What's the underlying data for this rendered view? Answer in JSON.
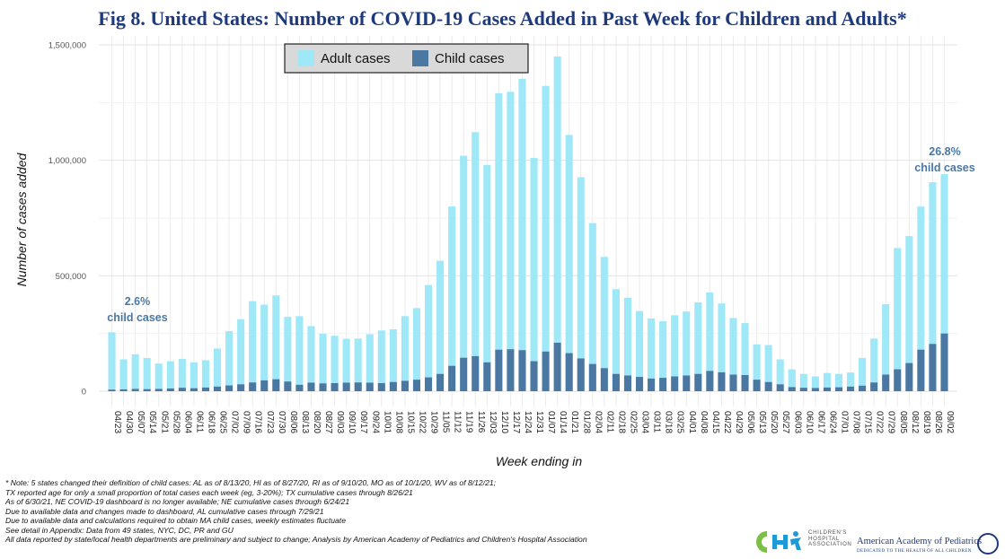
{
  "chart_data": {
    "type": "bar",
    "stacked": true,
    "title": "Fig 8. United States: Number of COVID-19 Cases Added in Past Week for Children and Adults*",
    "xlabel": "Week ending in",
    "ylabel": "Number of cases added",
    "ylim": [
      0,
      1500000
    ],
    "yticks": [
      "0",
      "500,000",
      "1,000,000",
      "1,500,000"
    ],
    "ytick_values": [
      0,
      500000,
      1000000,
      1500000
    ],
    "grid": true,
    "legend_position": "top-center",
    "categories": [
      "04/23",
      "04/30",
      "05/07",
      "05/14",
      "05/21",
      "05/28",
      "06/04",
      "06/11",
      "06/18",
      "06/25",
      "07/02",
      "07/09",
      "07/16",
      "07/23",
      "07/30",
      "08/06",
      "08/13",
      "08/20",
      "08/27",
      "09/03",
      "09/10",
      "09/17",
      "09/24",
      "10/01",
      "10/08",
      "10/15",
      "10/22",
      "10/29",
      "11/05",
      "11/12",
      "11/19",
      "11/26",
      "12/03",
      "12/10",
      "12/17",
      "12/24",
      "12/31",
      "01/07",
      "01/14",
      "01/21",
      "01/28",
      "02/04",
      "02/11",
      "02/18",
      "02/25",
      "03/04",
      "03/11",
      "03/18",
      "03/25",
      "04/01",
      "04/08",
      "04/15",
      "04/22",
      "04/29",
      "05/06",
      "05/13",
      "05/20",
      "05/27",
      "06/03",
      "06/10",
      "06/17",
      "06/24",
      "07/01",
      "07/08",
      "07/15",
      "07/22",
      "07/29",
      "08/05",
      "08/12",
      "08/19",
      "08/26",
      "09/02"
    ],
    "x_tick_labels": [
      "04/23",
      "05/07",
      "05/21",
      "06/04",
      "06/18",
      "07/02",
      "07/16",
      "07/30",
      "08/13",
      "08/27",
      "09/10",
      "09/24",
      "10/08",
      "10/22",
      "11/05",
      "11/19",
      "12/03",
      "12/17",
      "12/31",
      "01/14",
      "01/28",
      "02/11",
      "02/25",
      "03/11",
      "03/25",
      "04/08",
      "04/22",
      "05/06",
      "05/20",
      "06/03",
      "06/17",
      "07/01",
      "07/15",
      "07/29",
      "08/12",
      "08/26"
    ],
    "x_tick_labels_row2": [
      "04/30",
      "05/14",
      "05/28",
      "06/11",
      "06/25",
      "07/09",
      "07/23",
      "08/06",
      "08/20",
      "09/03",
      "09/17",
      "10/01",
      "10/15",
      "10/29",
      "11/12",
      "11/26",
      "12/10",
      "12/24",
      "01/07",
      "01/21",
      "02/04",
      "02/18",
      "03/04",
      "03/18",
      "04/01",
      "04/15",
      "04/29",
      "05/13",
      "05/27",
      "06/10",
      "06/24",
      "07/08",
      "07/22",
      "08/05",
      "08/19",
      "09/02"
    ],
    "series": [
      {
        "name": "Child cases",
        "color": "#4a78a3",
        "values": [
          7000,
          8000,
          10000,
          9000,
          10000,
          12000,
          15000,
          13000,
          16000,
          20000,
          25000,
          30000,
          38000,
          47000,
          52000,
          42000,
          28000,
          37000,
          34000,
          35000,
          37000,
          38000,
          37000,
          35000,
          40000,
          45000,
          50000,
          60000,
          75000,
          110000,
          145000,
          152000,
          125000,
          180000,
          182000,
          178000,
          130000,
          172000,
          210000,
          165000,
          142000,
          118000,
          100000,
          75000,
          68000,
          62000,
          55000,
          58000,
          64000,
          68000,
          75000,
          88000,
          82000,
          72000,
          70000,
          50000,
          40000,
          30000,
          18000,
          15000,
          14000,
          16000,
          17000,
          20000,
          24000,
          38000,
          72000,
          95000,
          122000,
          180000,
          205000,
          250000
        ]
      },
      {
        "name": "Adult cases",
        "color": "#9fe8f8",
        "values": [
          248000,
          130000,
          150000,
          135000,
          110000,
          118000,
          125000,
          112000,
          118000,
          165000,
          235000,
          282000,
          352000,
          328000,
          363000,
          280000,
          297000,
          245000,
          215000,
          205000,
          190000,
          190000,
          210000,
          228000,
          228000,
          280000,
          310000,
          400000,
          490000,
          690000,
          875000,
          970000,
          855000,
          1110000,
          1115000,
          1175000,
          880000,
          1150000,
          1240000,
          945000,
          785000,
          610000,
          482000,
          367000,
          337000,
          285000,
          260000,
          245000,
          265000,
          277000,
          310000,
          340000,
          298000,
          245000,
          225000,
          153000,
          160000,
          108000,
          77000,
          60000,
          50000,
          63000,
          58000,
          61000,
          120000,
          190000,
          305000,
          525000,
          550000,
          620000,
          700000,
          690000
        ]
      }
    ],
    "annotations": [
      {
        "lines": [
          "2.6%",
          "child cases"
        ],
        "color": "#4a78a3"
      },
      {
        "lines": [
          "26.8%",
          "child cases"
        ],
        "color": "#4a78a3"
      }
    ],
    "legend": [
      {
        "label": "Adult cases",
        "color": "#9fe8f8"
      },
      {
        "label": "Child cases",
        "color": "#4a78a3"
      }
    ]
  },
  "footer_notes": [
    "* Note: 5 states changed their definition of child cases: AL as of 8/13/20, HI as of 8/27/20, RI as of 9/10/20, MO as of 10/1/20, WV as of 8/12/21;",
    "TX reported age for only a small proportion of total cases each week (eg, 3-20%); TX cumulative cases through 8/26/21",
    "As of 6/30/21, NE COVID-19 dashboard is no longer available; NE cumulative cases through 6/24/21",
    "Due to available data and changes made to dashboard, AL cumulative cases through 7/29/21",
    "Due to available data and calculations required to obtain MA child cases, weekly estimates fluctuate",
    "See detail in Appendix: Data from 49 states, NYC, DC, PR and GU",
    "All data reported by state/local health departments are preliminary and subject to change; Analysis by American Academy of Pediatrics and Children's Hospital Association"
  ],
  "logos": {
    "chop_lines": [
      "CHILDREN'S",
      "HOSPITAL",
      "ASSOCIATION"
    ],
    "aap_name": "American Academy of Pediatrics",
    "aap_tagline": "DEDICATED TO THE HEALTH OF ALL CHILDREN"
  }
}
